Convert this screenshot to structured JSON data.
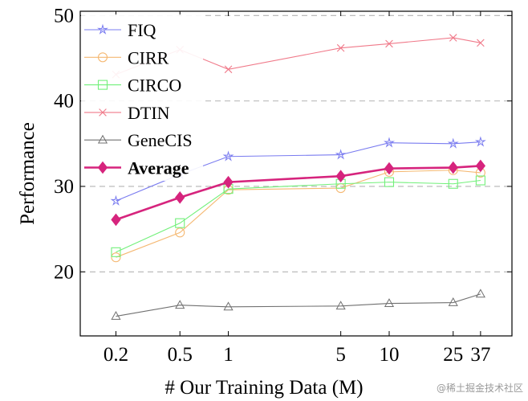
{
  "chart_data": {
    "type": "line",
    "xscale": "log",
    "x": [
      0.2,
      0.5,
      1,
      5,
      10,
      25,
      37
    ],
    "xticks": [
      {
        "value": 0.2,
        "label": "0.2"
      },
      {
        "value": 0.5,
        "label": "0.5"
      },
      {
        "value": 1,
        "label": "1"
      },
      {
        "value": 5,
        "label": "5"
      },
      {
        "value": 10,
        "label": "10"
      },
      {
        "value": 25,
        "label": "25"
      },
      {
        "value": 37,
        "label": "37"
      }
    ],
    "yticks": [
      20,
      30,
      40,
      50
    ],
    "xlim": [
      0.12,
      58
    ],
    "ylim": [
      12.5,
      50.5
    ],
    "xlabel": "# Our Training Data (M)",
    "ylabel": "Performance",
    "grid": "horizontal-dashed",
    "legend_position": "top-left",
    "series": [
      {
        "name": "FIQ",
        "color": "#7a7cf0",
        "marker": "star",
        "bold": false,
        "values": [
          28.3,
          31.4,
          33.5,
          33.7,
          35.1,
          35.0,
          35.2
        ]
      },
      {
        "name": "CIRR",
        "color": "#f5b872",
        "marker": "circle",
        "bold": false,
        "values": [
          21.7,
          24.6,
          29.6,
          29.8,
          31.7,
          31.9,
          31.6
        ]
      },
      {
        "name": "CIRCO",
        "color": "#72f07a",
        "marker": "square",
        "bold": false,
        "values": [
          22.3,
          25.7,
          29.7,
          30.3,
          30.5,
          30.3,
          30.7
        ]
      },
      {
        "name": "DTIN",
        "color": "#f07a8a",
        "marker": "x",
        "bold": false,
        "values": [
          43.1,
          46.0,
          43.7,
          46.2,
          46.7,
          47.4,
          46.8
        ]
      },
      {
        "name": "GeneCIS",
        "color": "#707070",
        "marker": "triangle",
        "bold": false,
        "values": [
          14.8,
          16.1,
          15.9,
          16.0,
          16.3,
          16.4,
          17.4
        ]
      },
      {
        "name": "Average",
        "color": "#d6247d",
        "marker": "diamond",
        "bold": true,
        "values": [
          26.1,
          28.7,
          30.5,
          31.2,
          32.1,
          32.2,
          32.4
        ]
      }
    ]
  },
  "watermark": "@稀土掘金技术社区"
}
